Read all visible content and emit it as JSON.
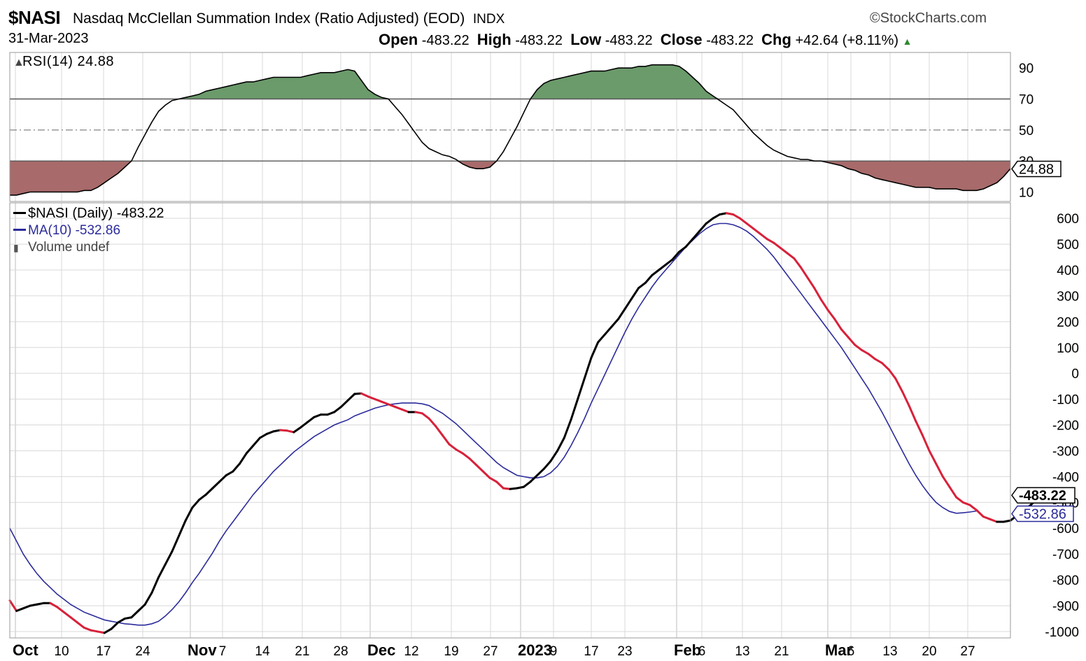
{
  "header": {
    "symbol": "$NASI",
    "title": "Nasdaq McClellan Summation Index (Ratio Adjusted) (EOD)",
    "exchange": "INDX",
    "brand": "©StockCharts.com",
    "date": "31-Mar-2023",
    "open_label": "Open",
    "open": "-483.22",
    "high_label": "High",
    "high": "-483.22",
    "low_label": "Low",
    "low": "-483.22",
    "close_label": "Close",
    "close": "-483.22",
    "chg_label": "Chg",
    "chg": "+42.64 (+8.11%)"
  },
  "chart_data": [
    {
      "type": "area",
      "panel": "rsi",
      "legend": "RSI(14) 24.88",
      "last_value_tag": "24.88",
      "y_ticks": [
        10,
        30,
        50,
        70,
        90
      ],
      "reference_lines": [
        30,
        50,
        70
      ],
      "ylim": [
        3,
        100
      ],
      "colors": {
        "overbought": "#6b9a6b",
        "oversold": "#a86a6a",
        "line": "#000000"
      },
      "series": [
        {
          "name": "RSI(14)",
          "values": [
            8,
            8,
            9,
            10,
            10,
            10,
            10,
            10,
            10,
            10,
            10,
            11,
            11,
            13,
            16,
            19,
            22,
            26,
            30,
            39,
            47,
            55,
            62,
            66,
            69,
            70,
            71,
            72,
            73,
            75,
            76,
            77,
            78,
            79,
            80,
            81,
            81,
            82,
            83,
            84,
            84,
            84,
            84,
            84,
            85,
            86,
            87,
            87,
            87,
            88,
            89,
            88,
            82,
            76,
            73,
            71,
            70,
            65,
            60,
            54,
            48,
            42,
            38,
            36,
            34,
            33,
            31,
            28,
            26,
            25,
            25,
            26,
            30,
            36,
            44,
            52,
            61,
            70,
            76,
            80,
            82,
            83,
            84,
            85,
            86,
            87,
            88,
            88,
            88,
            89,
            90,
            90,
            90,
            91,
            91,
            92,
            92,
            92,
            92,
            91,
            88,
            84,
            80,
            75,
            72,
            69,
            66,
            63,
            58,
            53,
            48,
            44,
            40,
            37,
            35,
            33,
            32,
            31,
            31,
            30,
            30,
            29,
            28,
            27,
            25,
            24,
            22,
            21,
            19,
            18,
            17,
            16,
            15,
            14,
            13,
            13,
            13,
            12,
            12,
            12,
            12,
            11,
            11,
            11,
            12,
            14,
            16,
            20,
            25
          ]
        }
      ]
    },
    {
      "type": "line",
      "panel": "price",
      "legend": [
        "$NASI (Daily) -483.22",
        "MA(10) -532.86",
        "Volume undef"
      ],
      "last_value_tags": [
        "-483.22",
        "-532.86"
      ],
      "y_ticks": [
        -1000,
        -900,
        -800,
        -700,
        -600,
        -500,
        -400,
        -300,
        -200,
        -100,
        0,
        100,
        200,
        300,
        400,
        500,
        600
      ],
      "ylim": [
        -1030,
        660
      ],
      "x_tick_labels": [
        {
          "text": "Oct",
          "bold": true
        },
        {
          "text": "10"
        },
        {
          "text": "17"
        },
        {
          "text": "24"
        },
        {
          "text": "Nov",
          "bold": true
        },
        {
          "text": "7"
        },
        {
          "text": "14"
        },
        {
          "text": "21"
        },
        {
          "text": "28"
        },
        {
          "text": "Dec",
          "bold": true
        },
        {
          "text": "12"
        },
        {
          "text": "19"
        },
        {
          "text": "27"
        },
        {
          "text": "2023",
          "bold": true
        },
        {
          "text": "9"
        },
        {
          "text": "17"
        },
        {
          "text": "23"
        },
        {
          "text": "Feb",
          "bold": true
        },
        {
          "text": "6"
        },
        {
          "text": "13"
        },
        {
          "text": "21"
        },
        {
          "text": "Mar",
          "bold": true
        },
        {
          "text": "6"
        },
        {
          "text": "13"
        },
        {
          "text": "20"
        },
        {
          "text": "27"
        }
      ],
      "colors": {
        "rising": "#000000",
        "falling": "#d8213a",
        "ma": "#2b2b9c"
      },
      "series": [
        {
          "name": "$NASI (Daily)",
          "values": [
            -880,
            -920,
            -910,
            -900,
            -895,
            -890,
            -890,
            -905,
            -925,
            -945,
            -965,
            -985,
            -995,
            -1000,
            -1005,
            -990,
            -965,
            -950,
            -945,
            -920,
            -895,
            -850,
            -790,
            -740,
            -690,
            -630,
            -570,
            -520,
            -490,
            -470,
            -445,
            -420,
            -395,
            -380,
            -350,
            -310,
            -280,
            -250,
            -235,
            -225,
            -220,
            -222,
            -228,
            -210,
            -190,
            -170,
            -160,
            -160,
            -150,
            -130,
            -105,
            -80,
            -78,
            -90,
            -100,
            -110,
            -120,
            -130,
            -140,
            -150,
            -150,
            -155,
            -175,
            -205,
            -240,
            -275,
            -295,
            -310,
            -330,
            -355,
            -380,
            -405,
            -420,
            -445,
            -448,
            -445,
            -440,
            -420,
            -395,
            -370,
            -340,
            -300,
            -250,
            -180,
            -100,
            -20,
            60,
            120,
            150,
            180,
            210,
            250,
            290,
            330,
            350,
            380,
            400,
            420,
            440,
            470,
            490,
            520,
            550,
            580,
            600,
            615,
            620,
            615,
            600,
            580,
            560,
            540,
            520,
            505,
            485,
            465,
            445,
            410,
            370,
            330,
            285,
            245,
            210,
            170,
            140,
            110,
            90,
            75,
            55,
            40,
            15,
            -20,
            -70,
            -125,
            -185,
            -240,
            -300,
            -350,
            -400,
            -440,
            -480,
            -500,
            -510,
            -530,
            -555,
            -565,
            -575,
            -575,
            -570,
            -550,
            -530,
            -510,
            -485
          ]
        },
        {
          "name": "MA(10)",
          "values": [
            -600,
            -650,
            -700,
            -740,
            -775,
            -805,
            -830,
            -855,
            -875,
            -895,
            -910,
            -925,
            -935,
            -945,
            -955,
            -960,
            -965,
            -970,
            -972,
            -975,
            -975,
            -970,
            -960,
            -940,
            -915,
            -885,
            -850,
            -810,
            -775,
            -735,
            -695,
            -650,
            -610,
            -575,
            -540,
            -505,
            -470,
            -440,
            -410,
            -380,
            -355,
            -330,
            -305,
            -285,
            -265,
            -245,
            -230,
            -215,
            -200,
            -190,
            -180,
            -165,
            -155,
            -145,
            -135,
            -128,
            -122,
            -118,
            -115,
            -115,
            -115,
            -118,
            -125,
            -140,
            -155,
            -175,
            -195,
            -220,
            -245,
            -270,
            -295,
            -320,
            -345,
            -365,
            -380,
            -395,
            -400,
            -405,
            -405,
            -400,
            -385,
            -360,
            -325,
            -280,
            -230,
            -175,
            -115,
            -60,
            -5,
            50,
            105,
            160,
            210,
            255,
            295,
            335,
            370,
            400,
            430,
            460,
            490,
            515,
            540,
            560,
            575,
            580,
            580,
            575,
            565,
            550,
            530,
            505,
            480,
            450,
            415,
            380,
            345,
            310,
            275,
            240,
            205,
            170,
            135,
            100,
            60,
            20,
            -20,
            -60,
            -105,
            -150,
            -200,
            -250,
            -300,
            -350,
            -395,
            -435,
            -470,
            -500,
            -520,
            -535,
            -542,
            -540,
            -537,
            -533
          ]
        }
      ]
    }
  ]
}
